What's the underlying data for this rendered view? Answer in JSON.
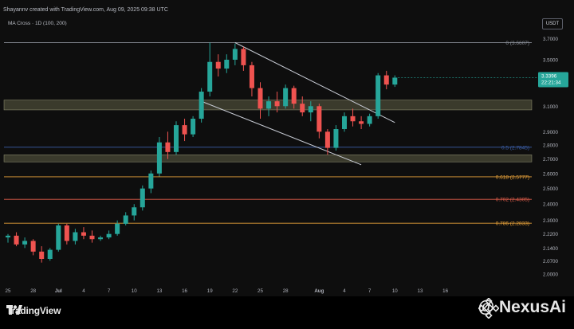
{
  "header": {
    "title": "Shayannv created with TradingView.com, Aug 09, 2025 09:38 UTC",
    "indicator": "MA Cross · 1D (100, 200)",
    "currency": "USDT"
  },
  "branding": {
    "tradingview": "TradingView",
    "watermark": "@ NexusAi"
  },
  "colors": {
    "up": "#26a69a",
    "down": "#ef5350",
    "zone": "#3a3a2c",
    "fib_gray": "#8a8f98",
    "fib_blue": "#3b5ea8",
    "fib_orange": "#e8a23a",
    "fib_red": "#e05d4a",
    "channel": "#c7cbd4",
    "price_tag": "#26a69a"
  },
  "chart_data": {
    "type": "candlestick",
    "y_scale": "log",
    "ylim": [
      1.95,
      3.78
    ],
    "y_ticks": [
      "3.7000",
      "3.5000",
      "3.3000",
      "3.1000",
      "2.9000",
      "2.8000",
      "2.7000",
      "2.6000",
      "2.5000",
      "2.4000",
      "2.3000",
      "2.2200",
      "2.1400",
      "2.0700",
      "2.0000"
    ],
    "x_ticks": [
      "25",
      "28",
      "Jul",
      "4",
      "7",
      "10",
      "13",
      "16",
      "19",
      "22",
      "25",
      "28",
      "Aug",
      "4",
      "7",
      "10",
      "13",
      "16"
    ],
    "x_tick_index": [
      0,
      3,
      6,
      9,
      12,
      15,
      18,
      21,
      24,
      27,
      30,
      33,
      37,
      40,
      43,
      46,
      49,
      52
    ],
    "fib_levels": [
      {
        "label": "0 (3.6607)",
        "price": 3.6607,
        "color": "#8a8f98"
      },
      {
        "label": "0.5 (2.7845)",
        "price": 2.7845,
        "color": "#3b5ea8"
      },
      {
        "label": "0.618 (2.5777)",
        "price": 2.5777,
        "color": "#e8a23a"
      },
      {
        "label": "0.702 (2.4305)",
        "price": 2.4305,
        "color": "#e05d4a"
      },
      {
        "label": "0.786 (2.2833)",
        "price": 2.2833,
        "color": "#e8a23a"
      }
    ],
    "zones": [
      {
        "from": 3.07,
        "to": 3.15
      },
      {
        "from": 2.68,
        "to": 2.73
      }
    ],
    "channel": {
      "upper": [
        [
          27,
          3.66
        ],
        [
          46,
          2.97
        ]
      ],
      "lower": [
        [
          23,
          3.14
        ],
        [
          42,
          2.66
        ]
      ]
    },
    "last_price": {
      "value": "3.3396",
      "countdown": "22:21:34",
      "price": 3.3396
    },
    "candles": [
      [
        2.2,
        2.22,
        2.17,
        2.21
      ],
      [
        2.21,
        2.23,
        2.15,
        2.16
      ],
      [
        2.16,
        2.2,
        2.14,
        2.18
      ],
      [
        2.18,
        2.19,
        2.1,
        2.12
      ],
      [
        2.12,
        2.15,
        2.06,
        2.08
      ],
      [
        2.08,
        2.14,
        2.07,
        2.13
      ],
      [
        2.13,
        2.28,
        2.12,
        2.27
      ],
      [
        2.27,
        2.28,
        2.16,
        2.18
      ],
      [
        2.18,
        2.25,
        2.16,
        2.23
      ],
      [
        2.23,
        2.26,
        2.19,
        2.21
      ],
      [
        2.21,
        2.24,
        2.17,
        2.19
      ],
      [
        2.19,
        2.21,
        2.18,
        2.2
      ],
      [
        2.2,
        2.24,
        2.19,
        2.22
      ],
      [
        2.22,
        2.3,
        2.21,
        2.28
      ],
      [
        2.28,
        2.35,
        2.27,
        2.33
      ],
      [
        2.33,
        2.4,
        2.3,
        2.38
      ],
      [
        2.38,
        2.52,
        2.36,
        2.5
      ],
      [
        2.5,
        2.62,
        2.47,
        2.6
      ],
      [
        2.6,
        2.86,
        2.58,
        2.82
      ],
      [
        2.82,
        2.9,
        2.7,
        2.75
      ],
      [
        2.75,
        2.98,
        2.73,
        2.95
      ],
      [
        2.95,
        3.0,
        2.83,
        2.88
      ],
      [
        2.88,
        3.02,
        2.86,
        3.0
      ],
      [
        3.0,
        3.25,
        2.97,
        3.22
      ],
      [
        3.22,
        3.66,
        3.18,
        3.48
      ],
      [
        3.48,
        3.55,
        3.35,
        3.42
      ],
      [
        3.42,
        3.55,
        3.38,
        3.5
      ],
      [
        3.5,
        3.65,
        3.45,
        3.6
      ],
      [
        3.6,
        3.62,
        3.4,
        3.45
      ],
      [
        3.45,
        3.48,
        3.18,
        3.25
      ],
      [
        3.25,
        3.3,
        3.0,
        3.08
      ],
      [
        3.08,
        3.18,
        3.02,
        3.14
      ],
      [
        3.14,
        3.22,
        3.05,
        3.1
      ],
      [
        3.1,
        3.28,
        3.08,
        3.25
      ],
      [
        3.25,
        3.27,
        3.08,
        3.12
      ],
      [
        3.12,
        3.18,
        3.02,
        3.05
      ],
      [
        3.05,
        3.14,
        2.98,
        3.1
      ],
      [
        3.1,
        3.12,
        2.85,
        2.9
      ],
      [
        2.9,
        2.92,
        2.73,
        2.78
      ],
      [
        2.78,
        2.95,
        2.76,
        2.92
      ],
      [
        2.92,
        3.05,
        2.9,
        3.02
      ],
      [
        3.02,
        3.08,
        2.94,
        2.98
      ],
      [
        2.98,
        3.02,
        2.92,
        2.96
      ],
      [
        2.96,
        3.04,
        2.94,
        3.02
      ],
      [
        3.02,
        3.38,
        3.0,
        3.36
      ],
      [
        3.36,
        3.4,
        3.24,
        3.28
      ],
      [
        3.28,
        3.36,
        3.26,
        3.34
      ]
    ]
  }
}
